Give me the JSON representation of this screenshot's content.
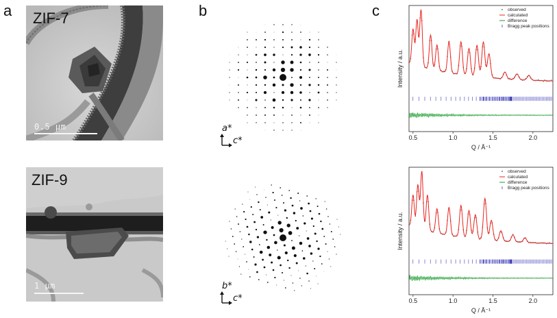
{
  "panels": {
    "a": "a",
    "b": "b",
    "c": "c"
  },
  "tem": [
    {
      "material": "ZIF-7",
      "scale_label": "0.5 µm"
    },
    {
      "material": "ZIF-9",
      "scale_label": "1 µm"
    }
  ],
  "diffraction": [
    {
      "axis1": "a*",
      "axis2": "c*"
    },
    {
      "axis1": "b*",
      "axis2": "c*"
    }
  ],
  "chart_data": [
    {
      "type": "line",
      "title": "",
      "xlabel": "Q / Å⁻¹",
      "ylabel": "Intensity / a.u.",
      "xlim": [
        0.45,
        2.25
      ],
      "xticks": [
        0.5,
        1.0,
        1.5,
        2.0
      ],
      "xtick_labels": [
        "0.5",
        "1.0",
        "1.5",
        "2.0"
      ],
      "legend": [
        "observed",
        "calculated",
        "difference",
        "Bragg peak positions"
      ],
      "legend_position": "top-right",
      "colors": {
        "observed": "#7a7a7a",
        "calculated": "#e8231d",
        "difference": "#1a9c2b",
        "bragg": "#3a3ab8"
      },
      "peaks": [
        {
          "q": 0.5,
          "height": 0.62
        },
        {
          "q": 0.55,
          "height": 0.8
        },
        {
          "q": 0.6,
          "height": 1.0
        },
        {
          "q": 0.72,
          "height": 0.6
        },
        {
          "q": 0.8,
          "height": 0.45
        },
        {
          "q": 0.95,
          "height": 0.55
        },
        {
          "q": 1.1,
          "height": 0.58
        },
        {
          "q": 1.2,
          "height": 0.48
        },
        {
          "q": 1.3,
          "height": 0.55
        },
        {
          "q": 1.38,
          "height": 0.62
        },
        {
          "q": 1.45,
          "height": 0.42
        },
        {
          "q": 1.65,
          "height": 0.12
        },
        {
          "q": 1.8,
          "height": 0.1
        },
        {
          "q": 1.95,
          "height": 0.08
        }
      ]
    },
    {
      "type": "line",
      "title": "",
      "xlabel": "Q / Å⁻¹",
      "ylabel": "Intensity / a.u.",
      "xlim": [
        0.45,
        2.25
      ],
      "xticks": [
        0.5,
        1.0,
        1.5,
        2.0
      ],
      "xtick_labels": [
        "0.5",
        "1.0",
        "1.5",
        "2.0"
      ],
      "legend": [
        "observed",
        "calculated",
        "difference",
        "Bragg peak positions"
      ],
      "legend_position": "top-right",
      "colors": {
        "observed": "#7a7a7a",
        "calculated": "#e8231d",
        "difference": "#1a9c2b",
        "bragg": "#3a3ab8"
      },
      "peaks": [
        {
          "q": 0.5,
          "height": 0.55
        },
        {
          "q": 0.56,
          "height": 0.75
        },
        {
          "q": 0.61,
          "height": 1.0
        },
        {
          "q": 0.68,
          "height": 0.62
        },
        {
          "q": 0.8,
          "height": 0.42
        },
        {
          "q": 0.95,
          "height": 0.48
        },
        {
          "q": 1.1,
          "height": 0.55
        },
        {
          "q": 1.2,
          "height": 0.48
        },
        {
          "q": 1.28,
          "height": 0.42
        },
        {
          "q": 1.4,
          "height": 0.72
        },
        {
          "q": 1.48,
          "height": 0.35
        },
        {
          "q": 1.6,
          "height": 0.18
        },
        {
          "q": 1.75,
          "height": 0.12
        },
        {
          "q": 1.9,
          "height": 0.08
        }
      ]
    }
  ]
}
